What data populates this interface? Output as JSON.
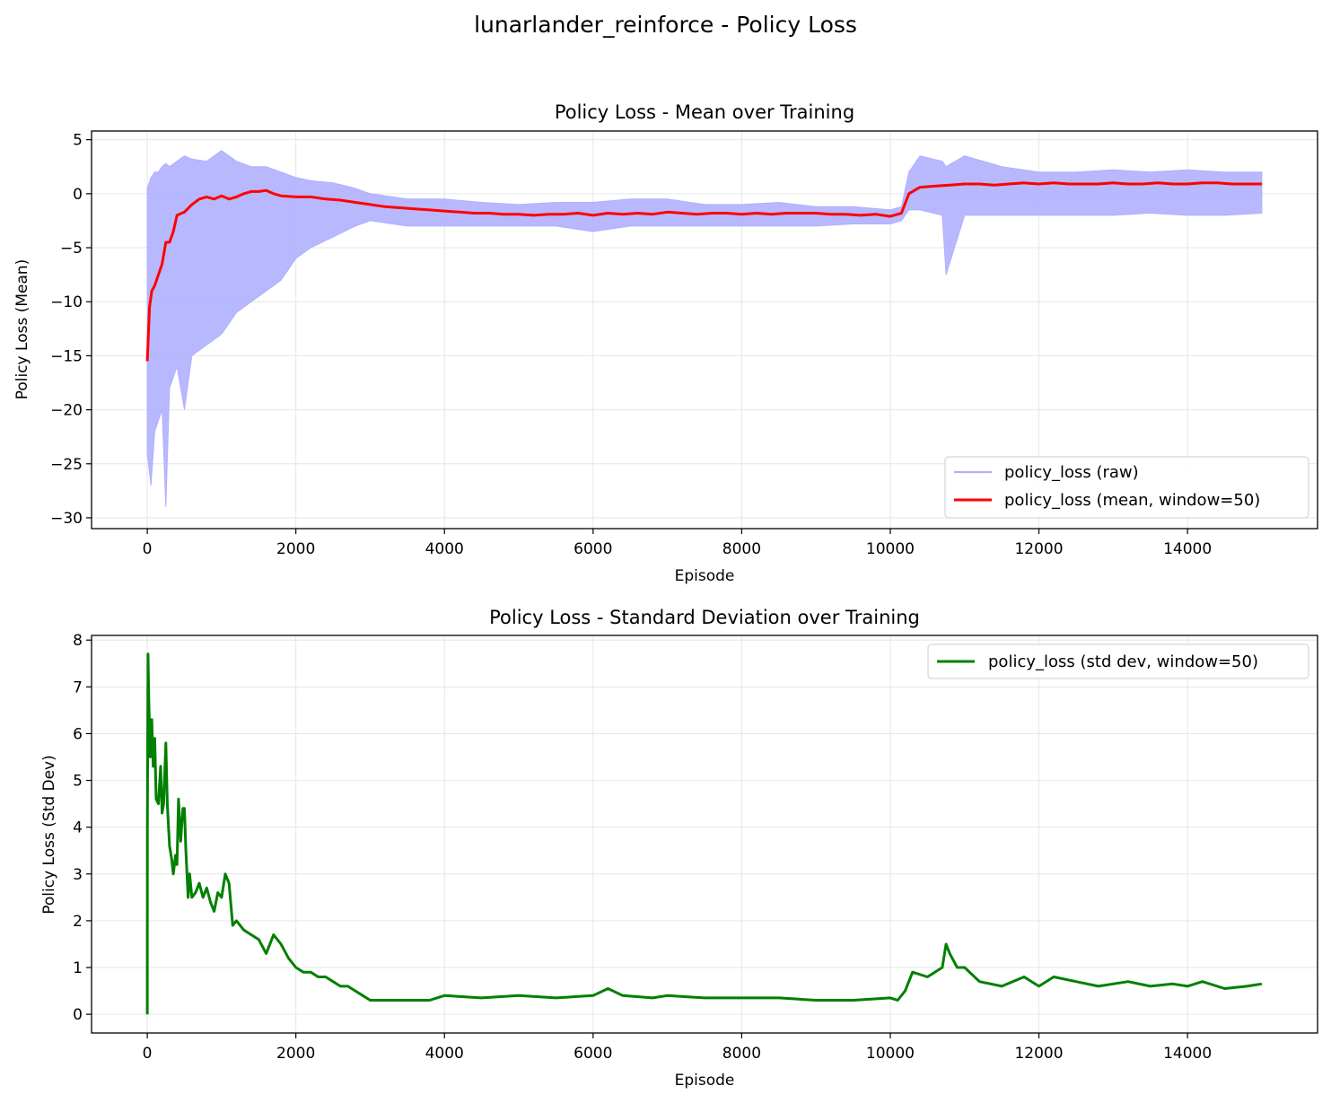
{
  "figure_title": "lunarlander_reinforce - Policy Loss",
  "colors": {
    "raw": "#b0b0ff",
    "mean": "#ff0000",
    "std": "#008000",
    "grid": "#e6e6e6"
  },
  "chart_data": [
    {
      "type": "line",
      "title": "Policy Loss - Mean over Training",
      "xlabel": "Episode",
      "ylabel": "Policy Loss (Mean)",
      "xlim": [
        -750,
        15750
      ],
      "ylim": [
        -31,
        5.8
      ],
      "xticks": [
        0,
        2000,
        4000,
        6000,
        8000,
        10000,
        12000,
        14000
      ],
      "yticks": [
        -30,
        -25,
        -20,
        -15,
        -10,
        -5,
        0,
        5
      ],
      "ytick_labels": [
        "−30",
        "−25",
        "−20",
        "−15",
        "−10",
        "−5",
        "0",
        "5"
      ],
      "grid": true,
      "legend_position": "lower-right",
      "series": [
        {
          "name": "policy_loss (raw)",
          "style": "band",
          "x": [
            0,
            50,
            100,
            150,
            200,
            250,
            300,
            400,
            500,
            600,
            800,
            1000,
            1200,
            1400,
            1600,
            1800,
            2000,
            2200,
            2500,
            2800,
            3000,
            3500,
            4000,
            4500,
            5000,
            5500,
            6000,
            6500,
            7000,
            7500,
            8000,
            8500,
            9000,
            9500,
            10000,
            10150,
            10250,
            10400,
            10700,
            10750,
            11000,
            11500,
            12000,
            12500,
            13000,
            13500,
            14000,
            14500,
            15000
          ],
          "upper": [
            0.5,
            1.5,
            2.0,
            2.0,
            2.5,
            2.8,
            2.5,
            3.0,
            3.5,
            3.2,
            3.0,
            4.0,
            3.0,
            2.5,
            2.5,
            2.0,
            1.5,
            1.2,
            1.0,
            0.5,
            0.0,
            -0.5,
            -0.5,
            -0.8,
            -1.0,
            -0.8,
            -0.8,
            -0.5,
            -0.5,
            -1.0,
            -1.0,
            -0.8,
            -1.2,
            -1.2,
            -1.5,
            -1.2,
            2.0,
            3.5,
            3.0,
            2.5,
            3.5,
            2.5,
            2.0,
            2.0,
            2.2,
            2.0,
            2.2,
            2.0,
            2.0
          ],
          "lower": [
            -24,
            -27,
            -22,
            -21,
            -20,
            -29,
            -18,
            -16,
            -20,
            -15,
            -14,
            -13,
            -11,
            -10,
            -9,
            -8,
            -6,
            -5,
            -4,
            -3,
            -2.5,
            -3,
            -3,
            -3,
            -3,
            -3,
            -3.5,
            -3,
            -3,
            -3,
            -3,
            -3,
            -3,
            -2.8,
            -2.8,
            -2.5,
            -1.5,
            -1.5,
            -2,
            -7.5,
            -2,
            -2,
            -2,
            -2,
            -2,
            -1.8,
            -2,
            -2,
            -1.8
          ]
        },
        {
          "name": "policy_loss (mean, window=50)",
          "style": "line",
          "x": [
            0,
            30,
            60,
            100,
            150,
            200,
            250,
            300,
            350,
            400,
            500,
            600,
            700,
            800,
            900,
            1000,
            1100,
            1200,
            1300,
            1400,
            1500,
            1600,
            1700,
            1800,
            2000,
            2200,
            2400,
            2600,
            2800,
            3000,
            3200,
            3400,
            3600,
            3800,
            4000,
            4200,
            4400,
            4600,
            4800,
            5000,
            5200,
            5400,
            5600,
            5800,
            6000,
            6200,
            6400,
            6600,
            6800,
            7000,
            7200,
            7400,
            7600,
            7800,
            8000,
            8200,
            8400,
            8600,
            8800,
            9000,
            9200,
            9400,
            9600,
            9800,
            10000,
            10150,
            10250,
            10400,
            10600,
            10800,
            11000,
            11200,
            11400,
            11600,
            11800,
            12000,
            12200,
            12400,
            12600,
            12800,
            13000,
            13200,
            13400,
            13600,
            13800,
            14000,
            14200,
            14400,
            14600,
            14800,
            15000
          ],
          "y": [
            -15.5,
            -10.5,
            -9.0,
            -8.5,
            -7.5,
            -6.5,
            -4.5,
            -4.5,
            -3.5,
            -2.0,
            -1.7,
            -1.0,
            -0.5,
            -0.3,
            -0.5,
            -0.2,
            -0.5,
            -0.3,
            0.0,
            0.2,
            0.2,
            0.3,
            0.0,
            -0.2,
            -0.3,
            -0.3,
            -0.5,
            -0.6,
            -0.8,
            -1.0,
            -1.2,
            -1.3,
            -1.4,
            -1.5,
            -1.6,
            -1.7,
            -1.8,
            -1.8,
            -1.9,
            -1.9,
            -2.0,
            -1.9,
            -1.9,
            -1.8,
            -2.0,
            -1.8,
            -1.9,
            -1.8,
            -1.9,
            -1.7,
            -1.8,
            -1.9,
            -1.8,
            -1.8,
            -1.9,
            -1.8,
            -1.9,
            -1.8,
            -1.8,
            -1.8,
            -1.9,
            -1.9,
            -2.0,
            -1.9,
            -2.1,
            -1.8,
            0.0,
            0.6,
            0.7,
            0.8,
            0.9,
            0.9,
            0.8,
            0.9,
            1.0,
            0.9,
            1.0,
            0.9,
            0.9,
            0.9,
            1.0,
            0.9,
            0.9,
            1.0,
            0.9,
            0.9,
            1.0,
            1.0,
            0.9,
            0.9,
            0.9
          ]
        }
      ]
    },
    {
      "type": "line",
      "title": "Policy Loss - Standard Deviation over Training",
      "xlabel": "Episode",
      "ylabel": "Policy Loss (Std Dev)",
      "xlim": [
        -750,
        15750
      ],
      "ylim": [
        -0.4,
        8.1
      ],
      "xticks": [
        0,
        2000,
        4000,
        6000,
        8000,
        10000,
        12000,
        14000
      ],
      "yticks": [
        0,
        1,
        2,
        3,
        4,
        5,
        6,
        7,
        8
      ],
      "ytick_labels": [
        "0",
        "1",
        "2",
        "3",
        "4",
        "5",
        "6",
        "7",
        "8"
      ],
      "grid": true,
      "legend_position": "upper-right",
      "series": [
        {
          "name": "policy_loss (std dev, window=50)",
          "style": "line",
          "x": [
            0,
            1,
            10,
            20,
            40,
            60,
            80,
            100,
            120,
            150,
            180,
            200,
            220,
            250,
            270,
            300,
            330,
            350,
            380,
            400,
            420,
            450,
            480,
            500,
            520,
            550,
            570,
            600,
            650,
            700,
            750,
            800,
            850,
            900,
            950,
            1000,
            1050,
            1100,
            1150,
            1200,
            1300,
            1400,
            1500,
            1600,
            1700,
            1800,
            1900,
            2000,
            2100,
            2200,
            2300,
            2400,
            2500,
            2600,
            2700,
            2800,
            2900,
            3000,
            3200,
            3400,
            3600,
            3800,
            4000,
            4500,
            5000,
            5500,
            6000,
            6200,
            6400,
            6800,
            7000,
            7500,
            8000,
            8500,
            9000,
            9500,
            10000,
            10100,
            10200,
            10300,
            10500,
            10700,
            10750,
            10800,
            10900,
            11000,
            11200,
            11500,
            11800,
            12000,
            12200,
            12500,
            12800,
            13000,
            13200,
            13500,
            13800,
            14000,
            14200,
            14500,
            14800,
            15000
          ],
          "y": [
            0.0,
            4.0,
            7.7,
            6.8,
            5.5,
            6.3,
            5.3,
            5.9,
            4.6,
            4.5,
            5.3,
            4.3,
            4.5,
            5.8,
            4.5,
            3.6,
            3.3,
            3.0,
            3.4,
            3.2,
            4.6,
            3.7,
            4.4,
            4.4,
            3.5,
            2.5,
            3.0,
            2.5,
            2.6,
            2.8,
            2.5,
            2.7,
            2.4,
            2.2,
            2.6,
            2.5,
            3.0,
            2.8,
            1.9,
            2.0,
            1.8,
            1.7,
            1.6,
            1.3,
            1.7,
            1.5,
            1.2,
            1.0,
            0.9,
            0.9,
            0.8,
            0.8,
            0.7,
            0.6,
            0.6,
            0.5,
            0.4,
            0.3,
            0.3,
            0.3,
            0.3,
            0.3,
            0.4,
            0.35,
            0.4,
            0.35,
            0.4,
            0.55,
            0.4,
            0.35,
            0.4,
            0.35,
            0.35,
            0.35,
            0.3,
            0.3,
            0.35,
            0.3,
            0.5,
            0.9,
            0.8,
            1.0,
            1.5,
            1.3,
            1.0,
            1.0,
            0.7,
            0.6,
            0.8,
            0.6,
            0.8,
            0.7,
            0.6,
            0.65,
            0.7,
            0.6,
            0.65,
            0.6,
            0.7,
            0.55,
            0.6,
            0.65
          ]
        }
      ]
    }
  ]
}
